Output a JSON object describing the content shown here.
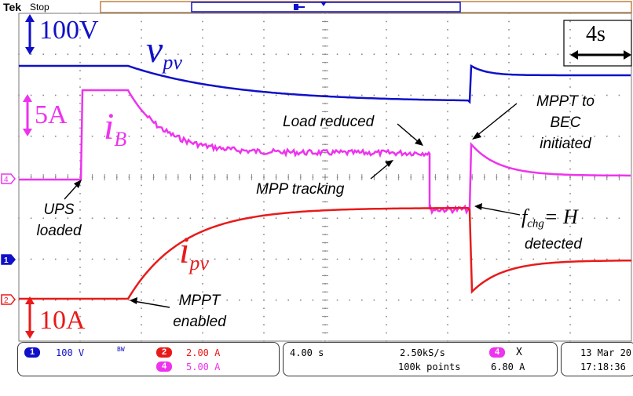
{
  "header": {
    "brand": "Tek",
    "status": "Stop"
  },
  "channels": {
    "ch1": {
      "number": "1",
      "scale": "100 V",
      "color": "#1010c8"
    },
    "ch2": {
      "number": "2",
      "scale": "2.00 A",
      "color": "#e81a1a"
    },
    "ch4": {
      "number": "4",
      "scale": "5.00 A",
      "color": "#ee33ee"
    }
  },
  "bandwidth_flag": "BW",
  "timebase": {
    "time_per_div": "4.00 s",
    "sample_rate": "2.50kS/s",
    "record_length": "100k points"
  },
  "trigger": {
    "channel": "4",
    "slope_symbol": "X",
    "level": "6.80 A"
  },
  "datetime": {
    "date": "13 Mar 20",
    "time": "17:18:36"
  },
  "overlay": {
    "scale_v": "100V",
    "scale_ib": "5A",
    "scale_ipv": "10A",
    "time_scale": "4s",
    "vpv_main": "v",
    "vpv_sub": "pv",
    "ib_main": "i",
    "ib_sub": "B",
    "ipv_main": "i",
    "ipv_sub": "pv",
    "ann_ups_1": "UPS",
    "ann_ups_2": "loaded",
    "ann_load": "Load reduced",
    "ann_mpp": "MPP tracking",
    "ann_mppt_bec_1": "MPPT to",
    "ann_mppt_bec_2": "BEC",
    "ann_mppt_bec_3": "initiated",
    "ann_fchg_main": "f",
    "ann_fchg_sub": "chg",
    "ann_fchg_eq": "= H",
    "ann_detected": "detected",
    "ann_mppt_en_1": "MPPT",
    "ann_mppt_en_2": "enabled"
  }
}
